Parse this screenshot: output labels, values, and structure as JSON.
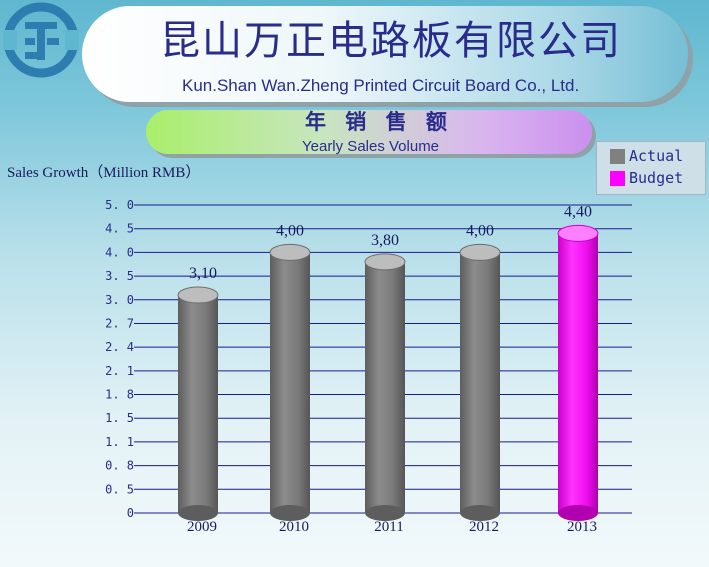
{
  "header": {
    "company_cn": "昆山万正电路板有限公司",
    "company_en": "Kun.Shan  Wan.Zheng Printed Circuit  Board  Co., Ltd.",
    "subtitle_cn": "年 销 售 额",
    "subtitle_en": "Yearly Sales Volume"
  },
  "colors": {
    "actual": "#808080",
    "budget": "#ff00ff",
    "text": "#2a2c8c",
    "logo": "#2e7db0"
  },
  "chart_data": {
    "type": "bar",
    "title": "Sales Growth（Million RMB）",
    "y_tick_labels": [
      "0",
      "0.5",
      "0.8",
      "1.1",
      "1.5",
      "1.8",
      "2.1",
      "2.4",
      "2.7",
      "3.0",
      "3.5",
      "4.0",
      "4.5",
      "5.0"
    ],
    "categories": [
      "2009",
      "2010",
      "2011",
      "2012",
      "2013"
    ],
    "values": [
      3.1,
      4.0,
      3.8,
      4.0,
      4.4
    ],
    "value_labels": [
      "3,10",
      "4,00",
      "3,80",
      "4,00",
      "4,40"
    ],
    "series_type": [
      "Actual",
      "Actual",
      "Actual",
      "Actual",
      "Budget"
    ],
    "legend": {
      "position": "top-right",
      "items": [
        "Actual",
        "Budget"
      ]
    },
    "grid": true
  }
}
